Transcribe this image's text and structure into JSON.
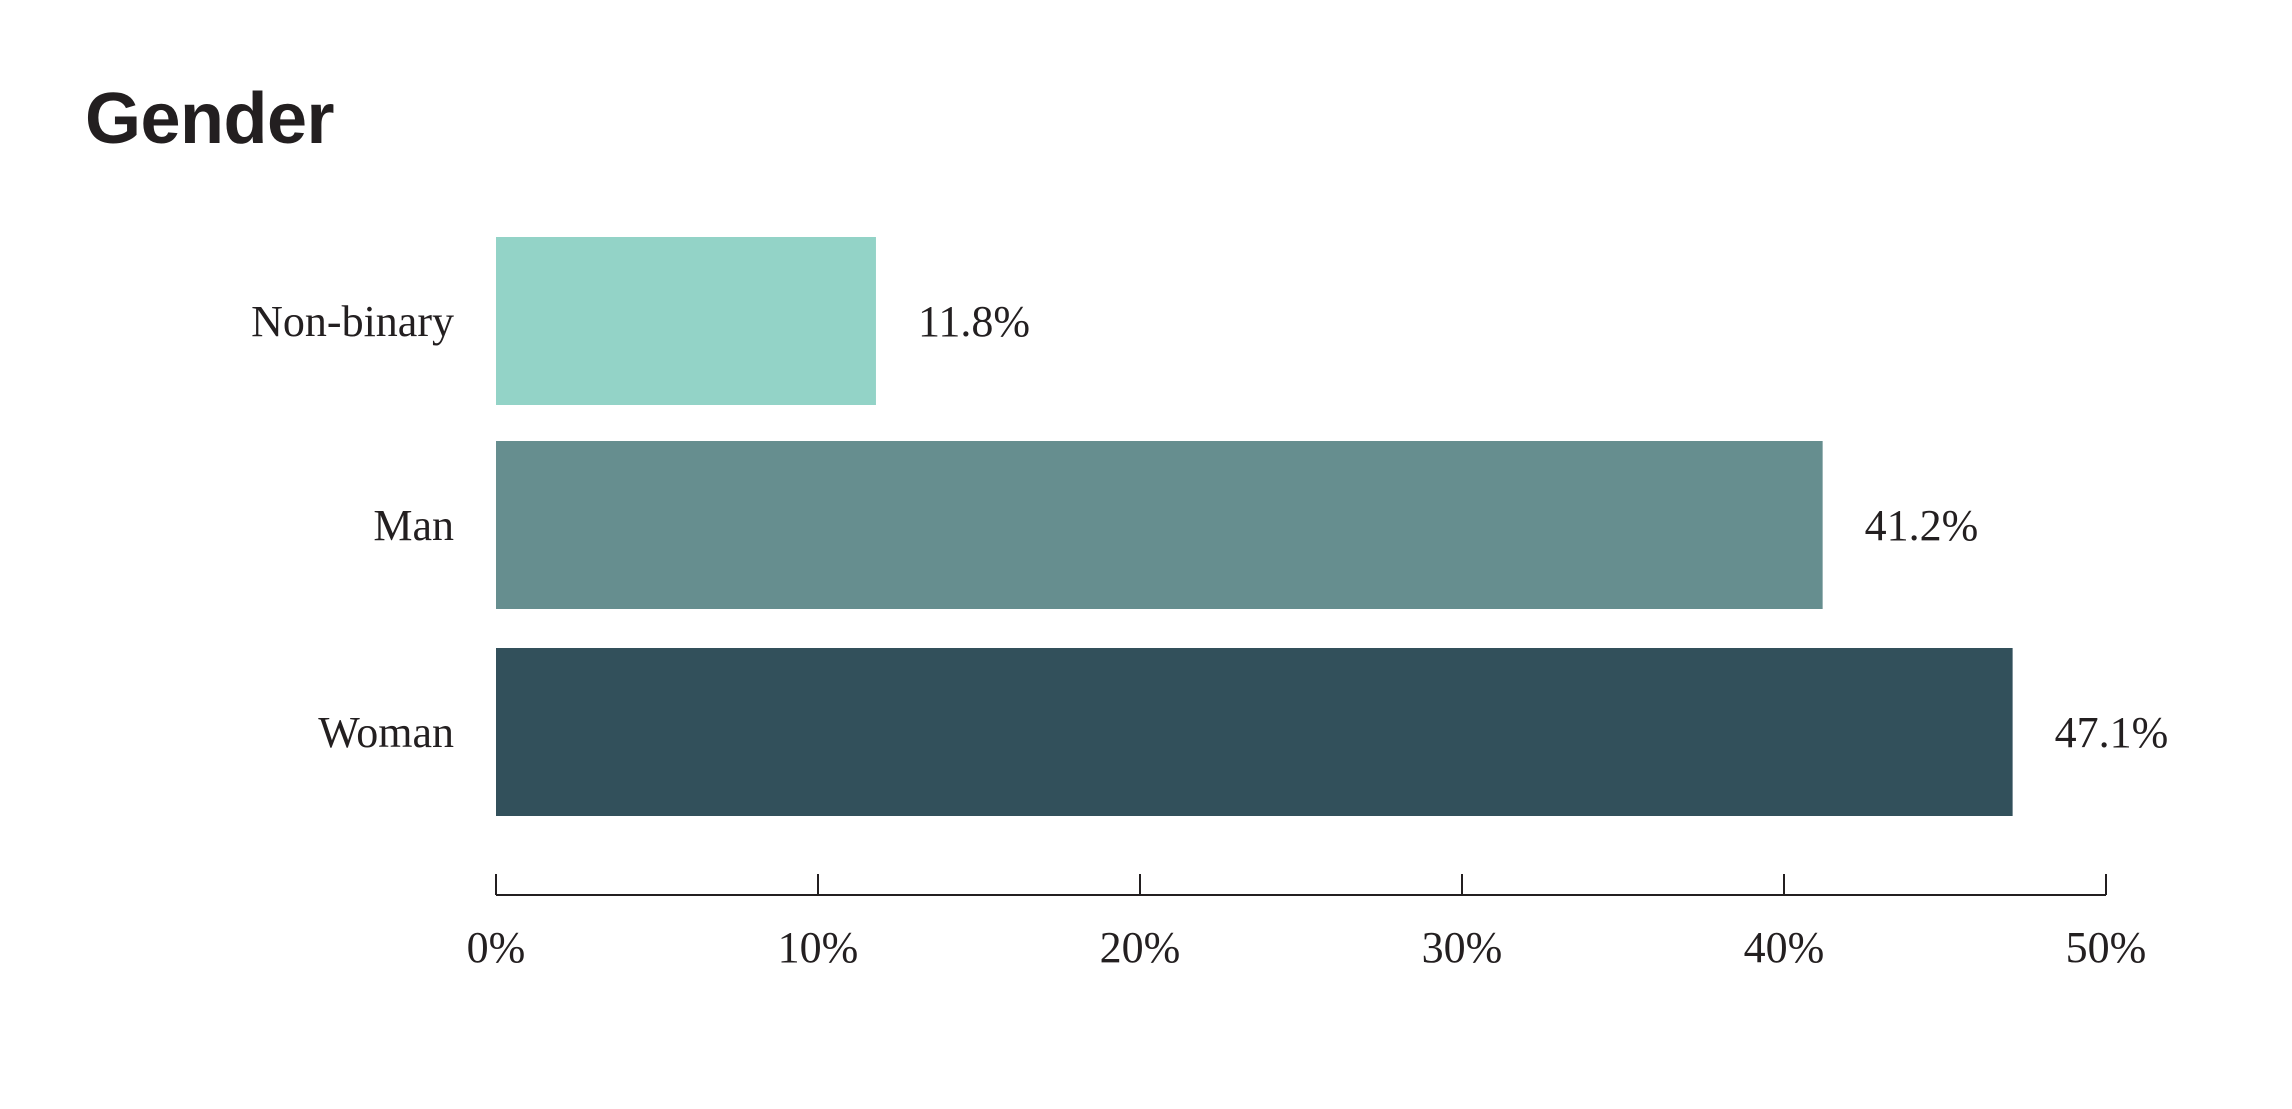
{
  "chart_data": {
    "type": "bar",
    "orientation": "horizontal",
    "title": "Gender",
    "xlabel": "",
    "ylabel": "",
    "categories": [
      "Non-binary",
      "Man",
      "Woman"
    ],
    "values": [
      11.8,
      41.2,
      47.1
    ],
    "value_labels": [
      "11.8%",
      "41.2%",
      "47.1%"
    ],
    "colors": [
      "#93d3c7",
      "#668e8f",
      "#32505b"
    ],
    "xlim": [
      0,
      50
    ],
    "x_ticks": [
      0,
      10,
      20,
      30,
      40,
      50
    ],
    "x_tick_labels": [
      "0%",
      "10%",
      "20%",
      "30%",
      "40%",
      "50%"
    ],
    "grid": false,
    "legend": "none"
  }
}
